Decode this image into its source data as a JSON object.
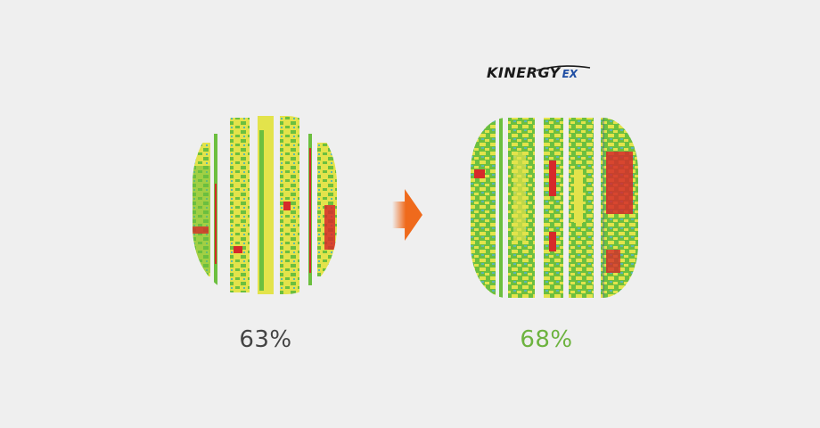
{
  "brand": {
    "logo_main": "KINERGY",
    "logo_suffix": "EX"
  },
  "comparison": {
    "left": {
      "value": "63%",
      "color": "#444444"
    },
    "right": {
      "value": "68%",
      "color": "#6db33f"
    }
  },
  "arrow": {
    "icon": "arrow-right-icon",
    "color": "#ef6a1c"
  },
  "palette": {
    "green": "#6cbf3f",
    "yellow": "#e3e34b",
    "red": "#d62a2a",
    "teal": "#5ab7b0",
    "blue": "#2a4fb0"
  }
}
